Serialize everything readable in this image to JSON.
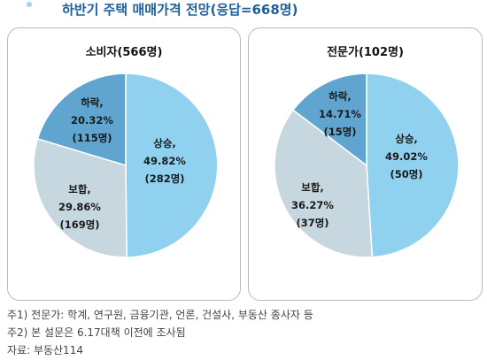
{
  "title": "하반기 주택 매매가격 전망(응답=668명)",
  "colors": {
    "title": "#1f5f99",
    "up": "#8fd1ee",
    "flat": "#c7d7df",
    "down": "#5fa5cf"
  },
  "chart_data": [
    {
      "type": "pie",
      "title": "소비자(566명)",
      "slices": [
        {
          "label": "상승,",
          "pct_text": "49.82%",
          "count_text": "(282명)",
          "value": 49.82,
          "count": 282,
          "color": "#8fd1ee"
        },
        {
          "label": "보합,",
          "pct_text": "29.86%",
          "count_text": "(169명)",
          "value": 29.86,
          "count": 169,
          "color": "#c7d7df"
        },
        {
          "label": "하락,",
          "pct_text": "20.32%",
          "count_text": "(115명)",
          "value": 20.32,
          "count": 115,
          "color": "#5fa5cf"
        }
      ]
    },
    {
      "type": "pie",
      "title": "전문가(102명)",
      "slices": [
        {
          "label": "상승,",
          "pct_text": "49.02%",
          "count_text": "(50명)",
          "value": 49.02,
          "count": 50,
          "color": "#8fd1ee"
        },
        {
          "label": "보합,",
          "pct_text": "36.27%",
          "count_text": "(37명)",
          "value": 36.27,
          "count": 37,
          "color": "#c7d7df"
        },
        {
          "label": "하락,",
          "pct_text": "14.71%",
          "count_text": "(15명)",
          "value": 14.71,
          "count": 15,
          "color": "#5fa5cf"
        }
      ]
    }
  ],
  "notes": [
    "주1) 전문가: 학계, 연구원, 금융기관, 언론, 건설사, 부동산 종사자 등",
    "주2) 본 설문은 6.17대책 이전에 조사됨",
    "자료: 부동산114"
  ]
}
